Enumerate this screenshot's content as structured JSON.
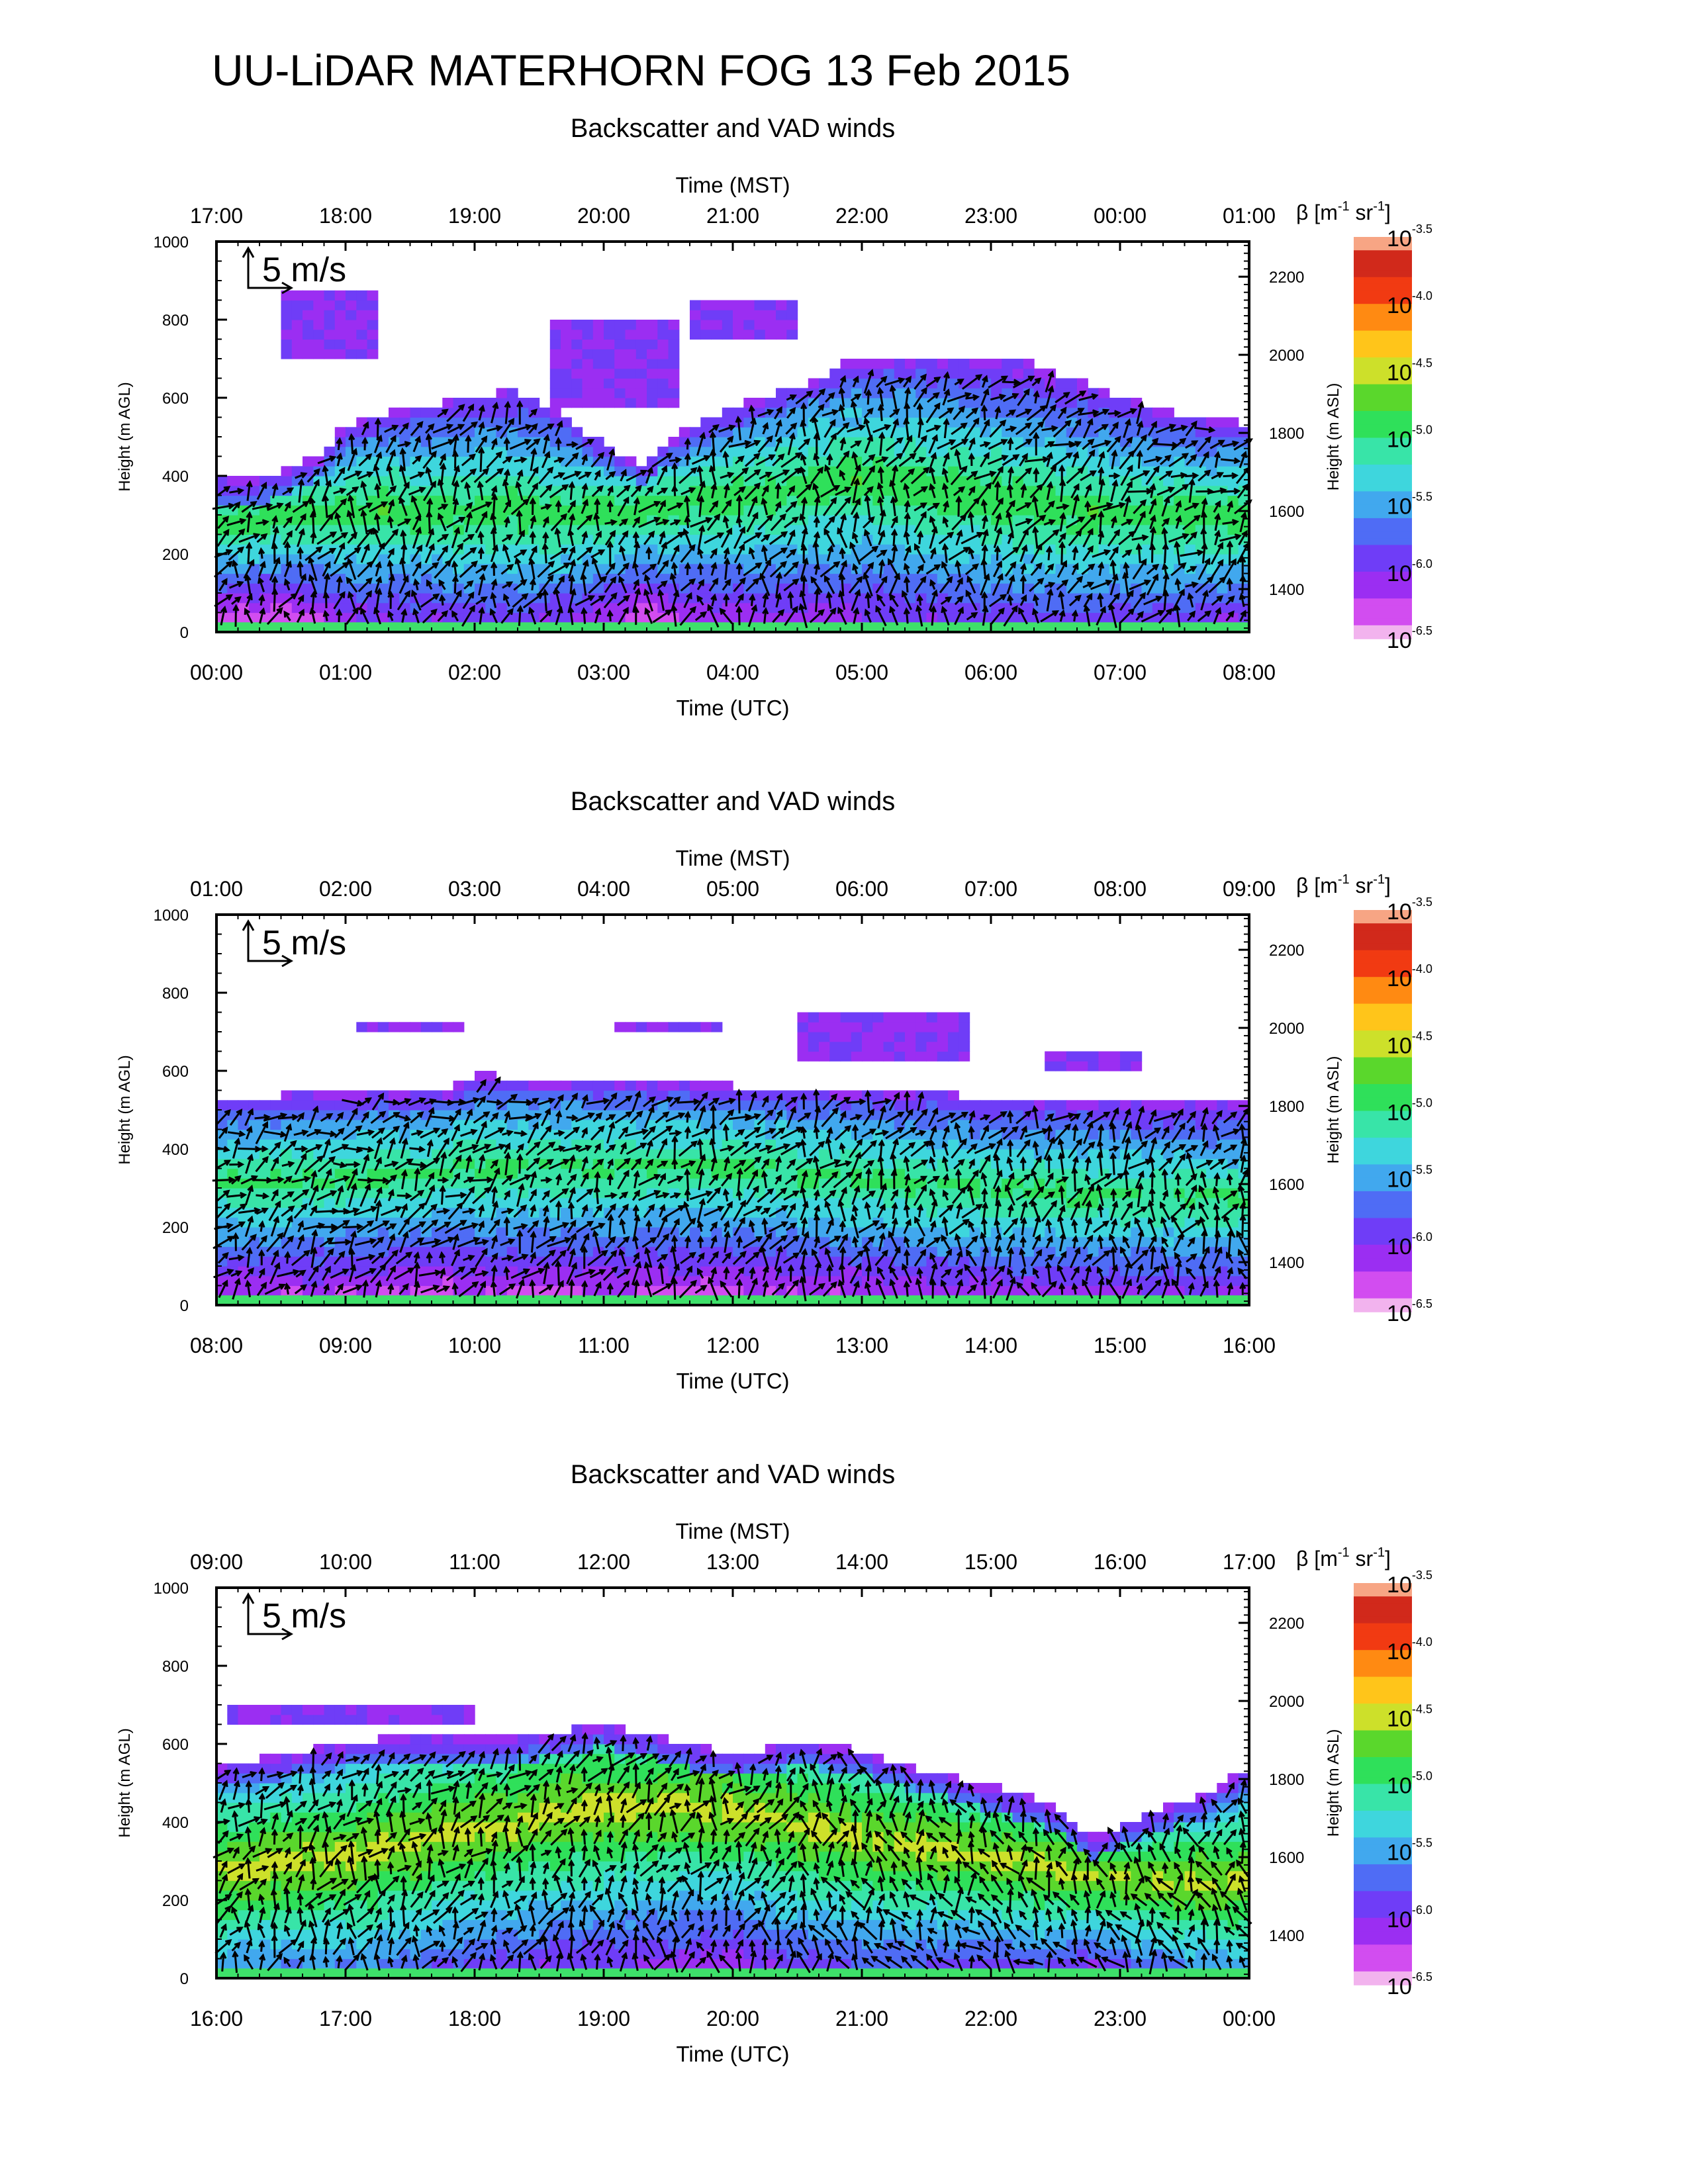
{
  "figure": {
    "title": "UU-LiDAR MATERHORN FOG  13 Feb 2015"
  },
  "colors": {
    "scale": [
      "#f2b3ee",
      "#d24df0",
      "#9b2ef2",
      "#6f3df7",
      "#4f6cf5",
      "#41a8ee",
      "#3ed6dd",
      "#38e4a8",
      "#2fe05a",
      "#5ad72c",
      "#cde02a",
      "#ffc51a",
      "#ff8a12",
      "#f13a12",
      "#d1291b",
      "#f7a584"
    ],
    "ground": "#3ee06a",
    "arrow": "#000000"
  },
  "chart_data": [
    {
      "type": "heatmap",
      "title": "Backscatter and VAD winds",
      "xlabel": "Time (UTC)",
      "x2label": "Time (MST)",
      "ylabel": "Height (m AGL)",
      "y2label": "Height (m ASL)",
      "x_ticks": [
        "00:00",
        "01:00",
        "02:00",
        "03:00",
        "04:00",
        "05:00",
        "06:00",
        "07:00",
        "08:00"
      ],
      "x2_ticks": [
        "17:00",
        "18:00",
        "19:00",
        "20:00",
        "21:00",
        "22:00",
        "23:00",
        "00:00",
        "01:00"
      ],
      "y_ticks": [
        "0",
        "200",
        "400",
        "600",
        "800",
        "1000"
      ],
      "y2_ticks": [
        "1400",
        "1600",
        "1800",
        "2000",
        "2200"
      ],
      "ylim": [
        0,
        1000
      ],
      "y2lim": [
        1290,
        2290
      ],
      "scale_arrow_label": "5 m/s",
      "colorbar": {
        "label_prefix": "β [m",
        "label_unit_1": "-1",
        "label_mid": " sr",
        "label_unit_2": "-1",
        "label_suffix": "]",
        "base": "10",
        "exponents": [
          "-3.5",
          "-4.0",
          "-4.5",
          "-5.0",
          "-5.5",
          "-6.0",
          "-6.5"
        ]
      },
      "layer_top": [
        [
          0,
          380
        ],
        [
          0.4,
          380
        ],
        [
          0.8,
          440
        ],
        [
          1.0,
          520
        ],
        [
          1.5,
          560
        ],
        [
          2.0,
          590
        ],
        [
          2.3,
          610
        ],
        [
          2.7,
          540
        ],
        [
          3.0,
          470
        ],
        [
          3.3,
          420
        ],
        [
          3.6,
          500
        ],
        [
          4.0,
          560
        ],
        [
          4.5,
          620
        ],
        [
          5.0,
          680
        ],
        [
          5.5,
          690
        ],
        [
          6.0,
          680
        ],
        [
          6.5,
          650
        ],
        [
          7.0,
          590
        ],
        [
          7.5,
          540
        ],
        [
          8.0,
          520
        ]
      ],
      "layer_core": [
        [
          0,
          260
        ],
        [
          1,
          300
        ],
        [
          2,
          300
        ],
        [
          3,
          290
        ],
        [
          4,
          330
        ],
        [
          5,
          380
        ],
        [
          6,
          330
        ],
        [
          7,
          290
        ],
        [
          8,
          280
        ]
      ],
      "core_level": 0.55,
      "upper_patches": [
        [
          0.5,
          1.25,
          700,
          850
        ],
        [
          3.7,
          4.5,
          730,
          830
        ],
        [
          2.6,
          3.6,
          560,
          780
        ],
        [
          4.8,
          6.3,
          640,
          690
        ]
      ],
      "wind_barbs": [
        [
          0.3,
          380,
          0.3
        ],
        [
          0.8,
          480,
          -0.5
        ],
        [
          1.2,
          520,
          -0.6
        ],
        [
          1.8,
          560,
          -0.8
        ],
        [
          2.4,
          570,
          -0.5
        ],
        [
          3.0,
          470,
          -0.3
        ],
        [
          3.6,
          540,
          0.1
        ],
        [
          4.3,
          590,
          0.1
        ],
        [
          5.0,
          620,
          0.3
        ],
        [
          5.6,
          600,
          1.2
        ],
        [
          6.2,
          560,
          1.3
        ],
        [
          7.0,
          540,
          0.8
        ],
        [
          7.6,
          500,
          0.6
        ]
      ],
      "wind_profile": [
        [
          0,
          0.3
        ],
        [
          1,
          0.0
        ],
        [
          2,
          0.1
        ],
        [
          3,
          0.2
        ],
        [
          4,
          0.05
        ],
        [
          5,
          0.0
        ],
        [
          6,
          0.2
        ],
        [
          7,
          0.3
        ],
        [
          8,
          0.4
        ]
      ]
    },
    {
      "type": "heatmap",
      "title": "Backscatter and VAD winds",
      "xlabel": "Time (UTC)",
      "x2label": "Time (MST)",
      "ylabel": "Height (m AGL)",
      "y2label": "Height (m ASL)",
      "x_ticks": [
        "08:00",
        "09:00",
        "10:00",
        "11:00",
        "12:00",
        "13:00",
        "14:00",
        "15:00",
        "16:00"
      ],
      "x2_ticks": [
        "01:00",
        "02:00",
        "03:00",
        "04:00",
        "05:00",
        "06:00",
        "07:00",
        "08:00",
        "09:00"
      ],
      "y_ticks": [
        "0",
        "200",
        "400",
        "600",
        "800",
        "1000"
      ],
      "y2_ticks": [
        "1400",
        "1600",
        "1800",
        "2000",
        "2200"
      ],
      "ylim": [
        0,
        1000
      ],
      "y2lim": [
        1290,
        2290
      ],
      "scale_arrow_label": "5 m/s",
      "colorbar": {
        "label_prefix": "β [m",
        "label_unit_1": "-1",
        "label_mid": " sr",
        "label_unit_2": "-1",
        "label_suffix": "]",
        "base": "10",
        "exponents": [
          "-3.5",
          "-4.0",
          "-4.5",
          "-5.0",
          "-5.5",
          "-6.0",
          "-6.5"
        ]
      },
      "layer_top": [
        [
          0,
          520
        ],
        [
          1,
          530
        ],
        [
          1.8,
          540
        ],
        [
          2.0,
          580
        ],
        [
          2.5,
          560
        ],
        [
          3.0,
          570
        ],
        [
          3.5,
          560
        ],
        [
          4.0,
          550
        ],
        [
          5.0,
          540
        ],
        [
          6.0,
          520
        ],
        [
          7.0,
          510
        ],
        [
          8.0,
          510
        ]
      ],
      "layer_core": [
        [
          0,
          300
        ],
        [
          1,
          310
        ],
        [
          2,
          340
        ],
        [
          3,
          340
        ],
        [
          4,
          340
        ],
        [
          5,
          310
        ],
        [
          6,
          280
        ],
        [
          7,
          270
        ],
        [
          8,
          260
        ]
      ],
      "core_level": 0.52,
      "upper_patches": [
        [
          1.1,
          1.9,
          690,
          710
        ],
        [
          3.1,
          3.9,
          680,
          700
        ],
        [
          4.5,
          5.8,
          620,
          730
        ],
        [
          6.4,
          7.2,
          600,
          630
        ]
      ],
      "wind_barbs": [
        [
          0.5,
          450,
          0.3
        ],
        [
          1.5,
          470,
          0.3
        ],
        [
          2.5,
          470,
          0.4
        ],
        [
          3.5,
          460,
          0.3
        ],
        [
          4.5,
          450,
          0.1
        ],
        [
          5.5,
          440,
          0.0
        ],
        [
          6.5,
          460,
          -0.1
        ],
        [
          7.5,
          460,
          -0.1
        ]
      ],
      "wind_profile": [
        [
          0,
          0.5
        ],
        [
          1,
          0.5
        ],
        [
          2,
          0.4
        ],
        [
          3,
          0.3
        ],
        [
          4,
          0.1
        ],
        [
          5,
          0.1
        ],
        [
          6,
          0.0
        ],
        [
          7,
          0.0
        ],
        [
          8,
          0.0
        ]
      ]
    },
    {
      "type": "heatmap",
      "title": "Backscatter and VAD winds",
      "xlabel": "Time (UTC)",
      "x2label": "Time (MST)",
      "ylabel": "Height (m AGL)",
      "y2label": "Height (m ASL)",
      "x_ticks": [
        "16:00",
        "17:00",
        "18:00",
        "19:00",
        "20:00",
        "21:00",
        "22:00",
        "23:00",
        "00:00"
      ],
      "x2_ticks": [
        "09:00",
        "10:00",
        "11:00",
        "12:00",
        "13:00",
        "14:00",
        "15:00",
        "16:00",
        "17:00"
      ],
      "y_ticks": [
        "0",
        "200",
        "400",
        "600",
        "800",
        "1000"
      ],
      "y2_ticks": [
        "1400",
        "1600",
        "1800",
        "2000",
        "2200"
      ],
      "ylim": [
        0,
        1000
      ],
      "y2lim": [
        1290,
        2290
      ],
      "scale_arrow_label": "5 m/s",
      "colorbar": {
        "label_prefix": "β [m",
        "label_unit_1": "-1",
        "label_mid": " sr",
        "label_unit_2": "-1",
        "label_suffix": "]",
        "base": "10",
        "exponents": [
          "-3.5",
          "-4.0",
          "-4.5",
          "-5.0",
          "-5.5",
          "-6.0",
          "-6.5"
        ]
      },
      "layer_top": [
        [
          0,
          530
        ],
        [
          0.5,
          560
        ],
        [
          1.0,
          590
        ],
        [
          1.5,
          610
        ],
        [
          2.0,
          600
        ],
        [
          2.5,
          610
        ],
        [
          3.0,
          640
        ],
        [
          3.5,
          600
        ],
        [
          4.0,
          560
        ],
        [
          4.5,
          590
        ],
        [
          5.0,
          570
        ],
        [
          5.5,
          520
        ],
        [
          6.0,
          480
        ],
        [
          6.5,
          430
        ],
        [
          6.8,
          350
        ],
        [
          7.2,
          410
        ],
        [
          7.6,
          450
        ],
        [
          8.0,
          530
        ]
      ],
      "layer_core": [
        [
          0,
          260
        ],
        [
          1,
          300
        ],
        [
          2,
          370
        ],
        [
          3,
          430
        ],
        [
          4,
          420
        ],
        [
          5,
          340
        ],
        [
          6,
          300
        ],
        [
          7,
          240
        ],
        [
          8,
          230
        ]
      ],
      "core_level": 0.66,
      "upper_patches": [
        [
          0.1,
          2.0,
          640,
          680
        ]
      ],
      "wind_barbs": [
        [
          0.3,
          460,
          0.0
        ],
        [
          1.0,
          520,
          -0.2
        ],
        [
          1.6,
          560,
          -0.3
        ],
        [
          2.4,
          560,
          0.1
        ],
        [
          3.2,
          560,
          0.0
        ],
        [
          4.0,
          500,
          0.0
        ],
        [
          4.8,
          480,
          0.2
        ],
        [
          5.6,
          440,
          0.2
        ],
        [
          6.4,
          390,
          0.3
        ],
        [
          7.4,
          380,
          0.2
        ]
      ],
      "wind_profile": [
        [
          0,
          0.2
        ],
        [
          1,
          0.1
        ],
        [
          2,
          0.2
        ],
        [
          3,
          0.0
        ],
        [
          4,
          0.0
        ],
        [
          5,
          -0.4
        ],
        [
          6,
          -0.6
        ],
        [
          7,
          -0.5
        ],
        [
          8,
          -0.3
        ]
      ]
    }
  ]
}
